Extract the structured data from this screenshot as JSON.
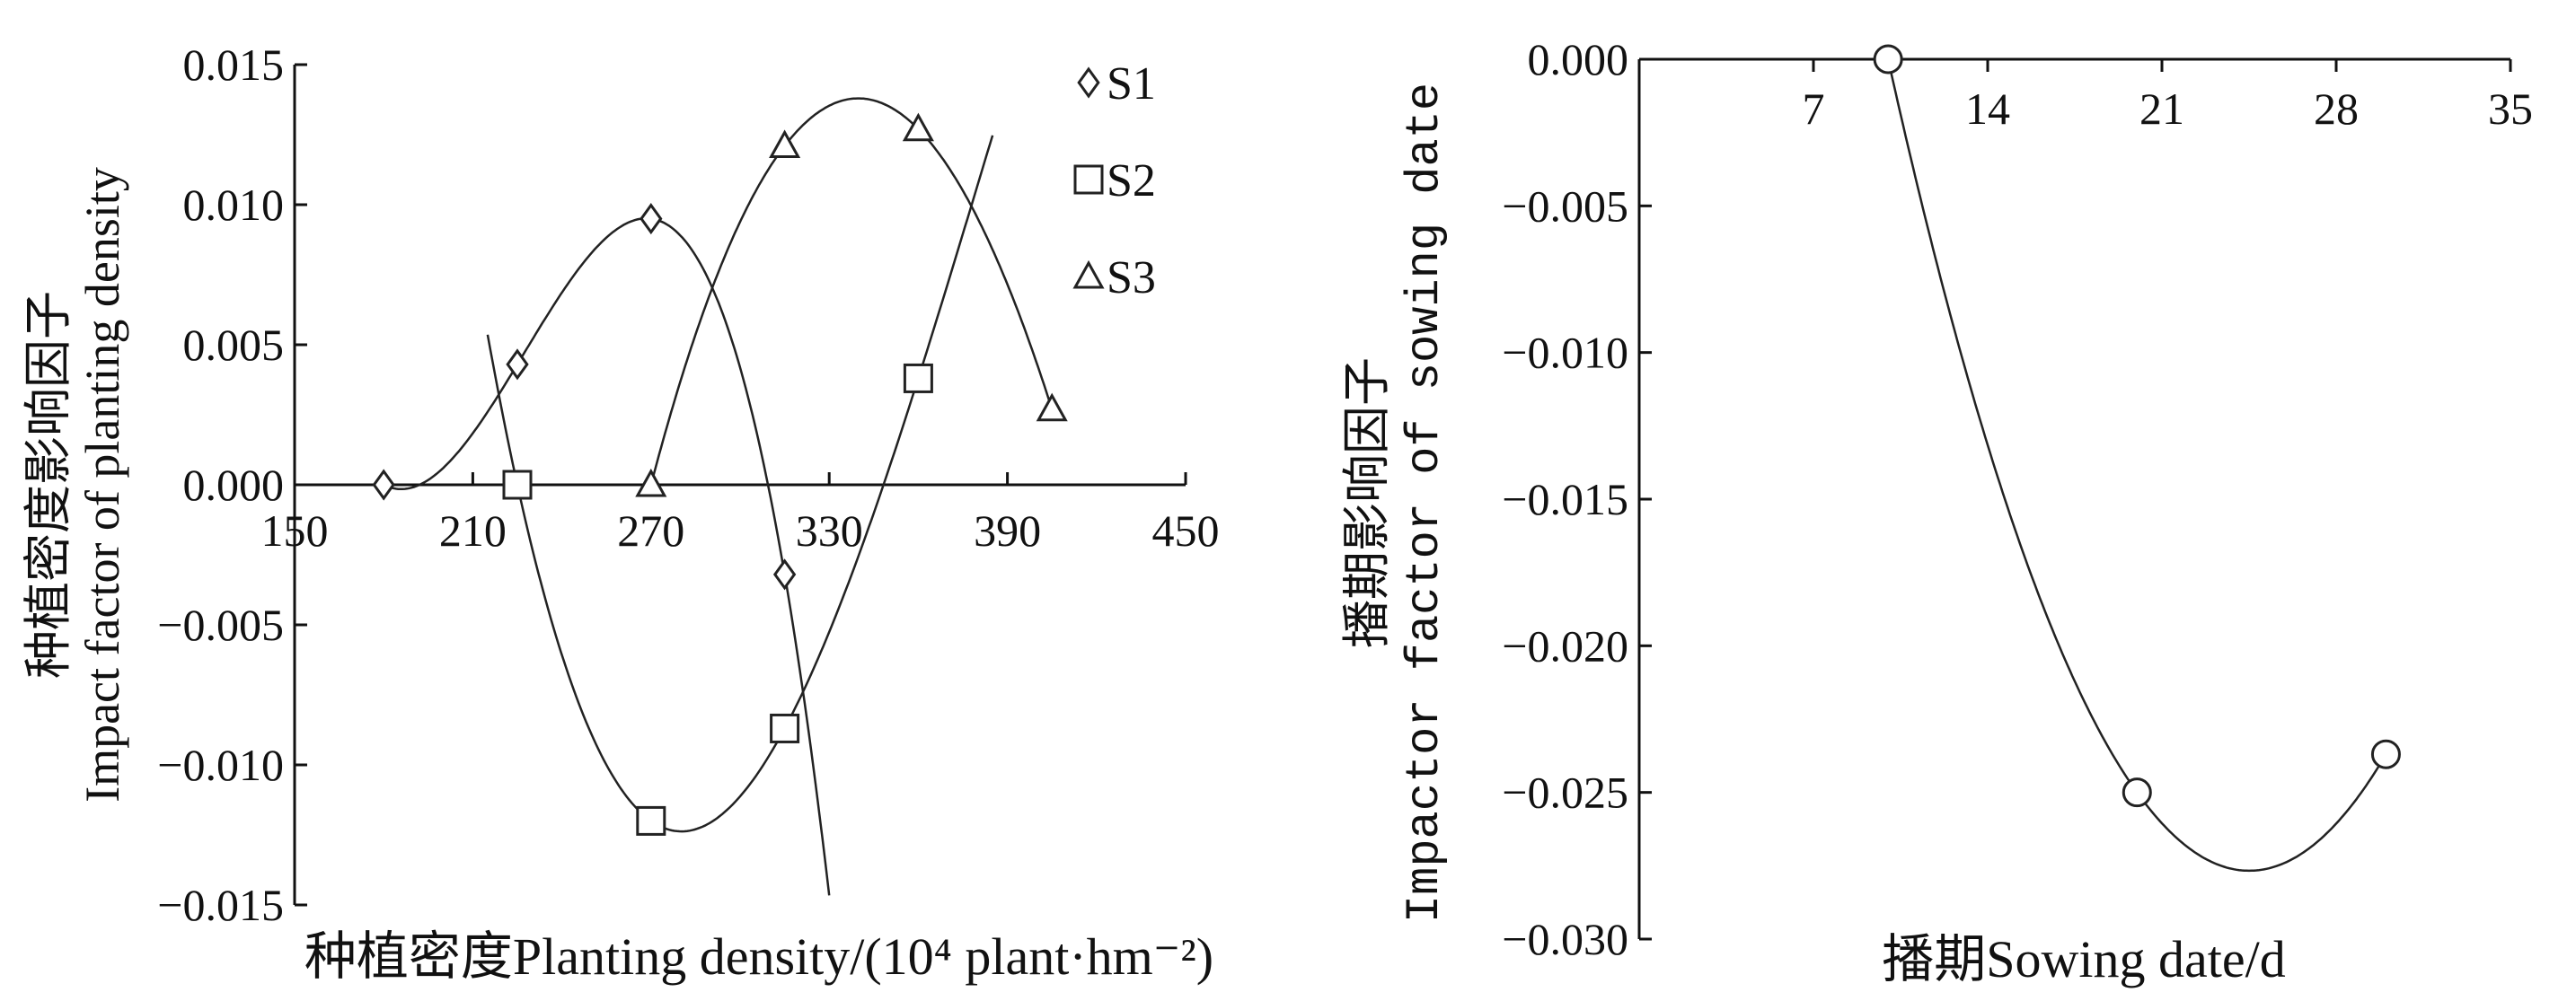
{
  "chart_data": [
    {
      "type": "scatter",
      "xlabel": "种植密度Planting density/(10⁴ plant·hm⁻²)",
      "ylabel_line1": "种植密度影响因子",
      "ylabel_line2": "Impact factor of planting density",
      "xlim": [
        150,
        450
      ],
      "ylim": [
        -0.015,
        0.015
      ],
      "xticks": [
        "150",
        "210",
        "270",
        "330",
        "390",
        "450"
      ],
      "yticks": [
        "0.015",
        "0.010",
        "0.005",
        "0.000",
        "−0.005",
        "−0.010",
        "−0.015"
      ],
      "legend_position": "top-right",
      "series": [
        {
          "name": "S1",
          "marker": "diamond",
          "points": [
            [
              180,
              0.0
            ],
            [
              225,
              0.0043
            ],
            [
              270,
              0.0095
            ],
            [
              315,
              -0.0032
            ]
          ],
          "fit_range": [
            178,
            330
          ]
        },
        {
          "name": "S2",
          "marker": "square",
          "points": [
            [
              225,
              0.0
            ],
            [
              270,
              -0.012
            ],
            [
              315,
              -0.0087
            ],
            [
              360,
              0.0038
            ]
          ],
          "fit_range": [
            215,
            385
          ]
        },
        {
          "name": "S3",
          "marker": "triangle",
          "points": [
            [
              270,
              0.0
            ],
            [
              315,
              0.0121
            ],
            [
              360,
              0.0127
            ],
            [
              405,
              0.0027
            ]
          ],
          "fit_range": [
            270,
            405
          ]
        }
      ]
    },
    {
      "type": "scatter",
      "xlabel": "播期Sowing date/d",
      "ylabel_line1": "播期影响因子",
      "ylabel_line2": "Impactor factor of sowing date",
      "xlim": [
        0,
        35
      ],
      "ylim": [
        -0.03,
        0.0
      ],
      "xticks": [
        "7",
        "14",
        "21",
        "28",
        "35"
      ],
      "yticks": [
        "0.000",
        "−0.005",
        "−0.010",
        "−0.015",
        "−0.020",
        "−0.025",
        "−0.030"
      ],
      "series": [
        {
          "marker": "circle",
          "points": [
            [
              10,
              0.0
            ],
            [
              20,
              -0.025
            ],
            [
              30,
              -0.0237
            ]
          ],
          "fit_range": [
            10,
            30
          ]
        }
      ]
    }
  ]
}
